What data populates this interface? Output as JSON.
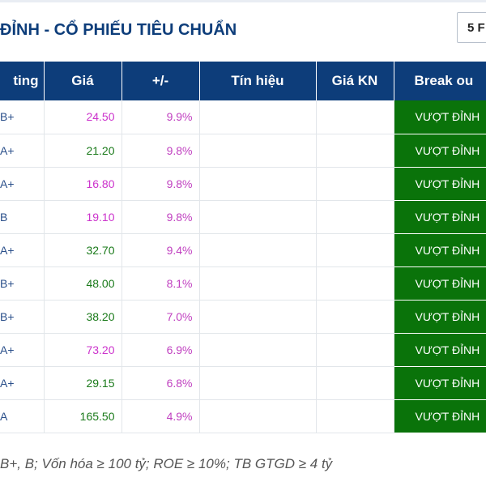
{
  "header": {
    "title": "ĐỈNH - CỔ PHIẾU TIÊU CHUẨN",
    "dropdown_value": "5 F"
  },
  "table": {
    "columns": [
      "ting",
      "Giá",
      "+/-",
      "Tín hiệu",
      "Giá KN",
      "Break ou"
    ],
    "rows": [
      {
        "rating": "B+",
        "price": "24.50",
        "price_color": "pink",
        "change": "9.9%",
        "signal": "",
        "kn_price": "",
        "breakout": "VƯỢT ĐỈNH"
      },
      {
        "rating": "A+",
        "price": "21.20",
        "price_color": "green",
        "change": "9.8%",
        "signal": "",
        "kn_price": "",
        "breakout": "VƯỢT ĐỈNH"
      },
      {
        "rating": "A+",
        "price": "16.80",
        "price_color": "pink",
        "change": "9.8%",
        "signal": "",
        "kn_price": "",
        "breakout": "VƯỢT ĐỈNH"
      },
      {
        "rating": "B",
        "price": "19.10",
        "price_color": "pink",
        "change": "9.8%",
        "signal": "",
        "kn_price": "",
        "breakout": "VƯỢT ĐỈNH"
      },
      {
        "rating": "A+",
        "price": "32.70",
        "price_color": "green",
        "change": "9.4%",
        "signal": "",
        "kn_price": "",
        "breakout": "VƯỢT ĐỈNH"
      },
      {
        "rating": "B+",
        "price": "48.00",
        "price_color": "green",
        "change": "8.1%",
        "signal": "",
        "kn_price": "",
        "breakout": "VƯỢT ĐỈNH"
      },
      {
        "rating": "B+",
        "price": "38.20",
        "price_color": "green",
        "change": "7.0%",
        "signal": "",
        "kn_price": "",
        "breakout": "VƯỢT ĐỈNH"
      },
      {
        "rating": "A+",
        "price": "73.20",
        "price_color": "pink",
        "change": "6.9%",
        "signal": "",
        "kn_price": "",
        "breakout": "VƯỢT ĐỈNH"
      },
      {
        "rating": "A+",
        "price": "29.15",
        "price_color": "green",
        "change": "6.8%",
        "signal": "",
        "kn_price": "",
        "breakout": "VƯỢT ĐỈNH"
      },
      {
        "rating": "A",
        "price": "165.50",
        "price_color": "green",
        "change": "4.9%",
        "signal": "",
        "kn_price": "",
        "breakout": "VƯỢT ĐỈNH"
      }
    ]
  },
  "footnote": "B+, B; Vốn hóa ≥ 100 tỷ; ROE ≥ 10%; TB GTGD ≥ 4 tỷ",
  "colors": {
    "header_bg": "#0d3d7a",
    "breakout_bg": "#0a730a",
    "pink": "#cc33cc",
    "green": "#1a7a1a"
  }
}
